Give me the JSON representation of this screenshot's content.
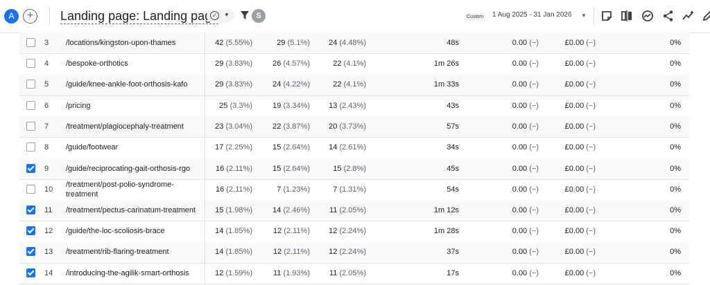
{
  "header": {
    "avatar_letter": "A",
    "add_label": "+",
    "title": "Landing page: Landing page",
    "segment_letter": "S",
    "date_chip": "Custom",
    "date_range": "1 Aug 2025 - 31 Jan 2026",
    "icons": [
      "insights-icon",
      "compare-icon",
      "trend-icon",
      "share-icon",
      "anomaly-icon",
      "edit-icon"
    ]
  },
  "table": {
    "rows": [
      {
        "idx": "3",
        "page": "/locations/kingston-upon-thames",
        "c1": "42",
        "c1p": "(5.55%)",
        "c2": "29",
        "c2p": "(5.1%)",
        "c3": "24",
        "c3p": "(4.48%)",
        "dur": "48s",
        "v5": "0.00",
        "v5p": "(−)",
        "v6": "£0.00",
        "v6p": "(−)",
        "pct": "0%",
        "checked": false
      },
      {
        "idx": "4",
        "page": "/bespoke-orthotics",
        "c1": "29",
        "c1p": "(3.83%)",
        "c2": "26",
        "c2p": "(4.57%)",
        "c3": "22",
        "c3p": "(4.1%)",
        "dur": "1m 26s",
        "v5": "0.00",
        "v5p": "(−)",
        "v6": "£0.00",
        "v6p": "(−)",
        "pct": "0%",
        "checked": false
      },
      {
        "idx": "5",
        "page": "/guide/knee-ankle-foot-orthosis-kafo",
        "c1": "29",
        "c1p": "(3.83%)",
        "c2": "24",
        "c2p": "(4.22%)",
        "c3": "22",
        "c3p": "(4.1%)",
        "dur": "1m 33s",
        "v5": "0.00",
        "v5p": "(−)",
        "v6": "£0.00",
        "v6p": "(−)",
        "pct": "0%",
        "checked": false
      },
      {
        "idx": "6",
        "page": "/pricing",
        "c1": "25",
        "c1p": "(3.3%)",
        "c2": "19",
        "c2p": "(3.34%)",
        "c3": "13",
        "c3p": "(2.43%)",
        "dur": "43s",
        "v5": "0.00",
        "v5p": "(−)",
        "v6": "£0.00",
        "v6p": "(−)",
        "pct": "0%",
        "checked": false
      },
      {
        "idx": "7",
        "page": "/treatment/plagiocephaly-treatment",
        "c1": "23",
        "c1p": "(3.04%)",
        "c2": "22",
        "c2p": "(3.87%)",
        "c3": "20",
        "c3p": "(3.73%)",
        "dur": "57s",
        "v5": "0.00",
        "v5p": "(−)",
        "v6": "£0.00",
        "v6p": "(−)",
        "pct": "0%",
        "checked": false
      },
      {
        "idx": "8",
        "page": "/guide/footwear",
        "c1": "17",
        "c1p": "(2.25%)",
        "c2": "15",
        "c2p": "(2.64%)",
        "c3": "14",
        "c3p": "(2.61%)",
        "dur": "34s",
        "v5": "0.00",
        "v5p": "(−)",
        "v6": "£0.00",
        "v6p": "(−)",
        "pct": "0%",
        "checked": false
      },
      {
        "idx": "9",
        "page": "/guide/reciprocating-gait-orthosis-rgo",
        "c1": "16",
        "c1p": "(2.11%)",
        "c2": "15",
        "c2p": "(2.64%)",
        "c3": "15",
        "c3p": "(2.8%)",
        "dur": "45s",
        "v5": "0.00",
        "v5p": "(−)",
        "v6": "£0.00",
        "v6p": "(−)",
        "pct": "0%",
        "checked": true
      },
      {
        "idx": "10",
        "page": "/treatment/post-polio-syndrome-treatment",
        "c1": "16",
        "c1p": "(2.11%)",
        "c2": "7",
        "c2p": "(1.23%)",
        "c3": "7",
        "c3p": "(1.31%)",
        "dur": "54s",
        "v5": "0.00",
        "v5p": "(−)",
        "v6": "£0.00",
        "v6p": "(−)",
        "pct": "0%",
        "checked": false
      },
      {
        "idx": "11",
        "page": "/treatment/pectus-carinatum-treatment",
        "c1": "15",
        "c1p": "(1.98%)",
        "c2": "14",
        "c2p": "(2.46%)",
        "c3": "11",
        "c3p": "(2.05%)",
        "dur": "1m 12s",
        "v5": "0.00",
        "v5p": "(−)",
        "v6": "£0.00",
        "v6p": "(−)",
        "pct": "0%",
        "checked": true
      },
      {
        "idx": "12",
        "page": "/guide/the-loc-scoliosis-brace",
        "c1": "14",
        "c1p": "(1.85%)",
        "c2": "12",
        "c2p": "(2.11%)",
        "c3": "12",
        "c3p": "(2.24%)",
        "dur": "1m 28s",
        "v5": "0.00",
        "v5p": "(−)",
        "v6": "£0.00",
        "v6p": "(−)",
        "pct": "0%",
        "checked": true
      },
      {
        "idx": "13",
        "page": "/treatment/rib-flaring-treatment",
        "c1": "14",
        "c1p": "(1.85%)",
        "c2": "12",
        "c2p": "(2.11%)",
        "c3": "12",
        "c3p": "(2.24%)",
        "dur": "37s",
        "v5": "0.00",
        "v5p": "(−)",
        "v6": "£0.00",
        "v6p": "(−)",
        "pct": "0%",
        "checked": true
      },
      {
        "idx": "14",
        "page": "/introducing-the-agilik-smart-orthosis",
        "c1": "12",
        "c1p": "(1.59%)",
        "c2": "11",
        "c2p": "(1.93%)",
        "c3": "11",
        "c3p": "(2.05%)",
        "dur": "17s",
        "v5": "0.00",
        "v5p": "(−)",
        "v6": "£0.00",
        "v6p": "(−)",
        "pct": "0%",
        "checked": true
      }
    ]
  },
  "colors": {
    "accent": "#1a73e8",
    "row_alt": "#f8f9fa",
    "border": "#e0e0e0"
  }
}
